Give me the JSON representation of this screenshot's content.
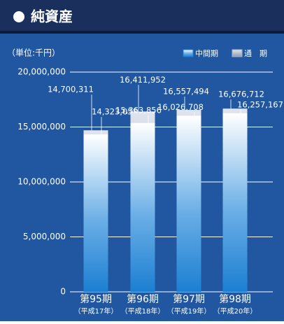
{
  "chart_data": {
    "type": "bar",
    "title": "純資産",
    "unit_label": "（単位:千円）",
    "categories": [
      "第95期",
      "第96期",
      "第97期",
      "第98期"
    ],
    "subcategories": [
      "（平成17年）",
      "（平成18年）",
      "（平成19年）",
      "（平成20年）"
    ],
    "series": [
      {
        "name": "通　期",
        "color": "#aab4c8",
        "values": [
          14700311,
          16411952,
          16557494,
          16676712
        ],
        "value_labels": [
          "14,700,311",
          "16,411,952",
          "16,557,494",
          "16,676,712"
        ]
      },
      {
        "name": "中間期",
        "color": "#1c7fd2",
        "values": [
          14323058,
          15363856,
          16026708,
          16257167
        ],
        "value_labels": [
          "14,323,058",
          "15,363,856",
          "16,026,708",
          "16,257,167"
        ]
      }
    ],
    "ylim": [
      0,
      20000000
    ],
    "yticks": [
      {
        "value": 0,
        "label": "0"
      },
      {
        "value": 5000000,
        "label": "5,000,000"
      },
      {
        "value": 10000000,
        "label": "10,000,000"
      },
      {
        "value": 15000000,
        "label": "15,000,000"
      },
      {
        "value": 20000000,
        "label": "20,000,000"
      }
    ],
    "grid": true
  }
}
